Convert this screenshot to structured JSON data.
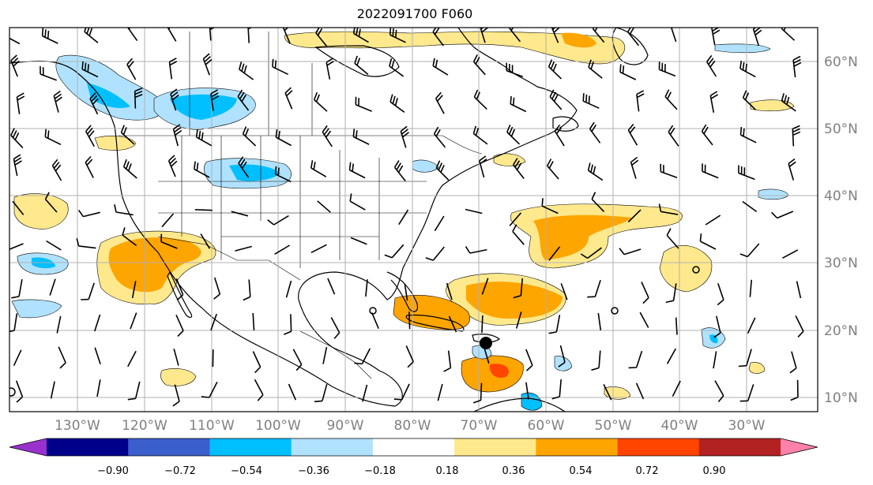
{
  "title": "2022091700 F060",
  "map": {
    "lat_ticks": [
      "60°N",
      "50°N",
      "40°N",
      "30°N",
      "20°N",
      "10°N"
    ],
    "lon_ticks": [
      "130°W",
      "120°W",
      "110°W",
      "100°W",
      "90°W",
      "80°W",
      "70°W",
      "60°W",
      "50°W",
      "40°W",
      "30°W"
    ],
    "grid_color": "#b0b0b0",
    "extent": {
      "lon_min": -137,
      "lon_max": -15,
      "lat_min": 8,
      "lat_max": 65
    }
  },
  "colorbar": {
    "colors": [
      "#9932cc",
      "#00008b",
      "#3a5fcd",
      "#00bfff",
      "#b0e2ff",
      "#ffffff",
      "#ffe98c",
      "#ffa500",
      "#ff4500",
      "#b22222",
      "#ff82ab"
    ],
    "labels": [
      "−0.90",
      "−0.72",
      "−0.54",
      "−0.36",
      "−0.18",
      "0.18",
      "0.36",
      "0.54",
      "0.72",
      "0.90"
    ]
  }
}
